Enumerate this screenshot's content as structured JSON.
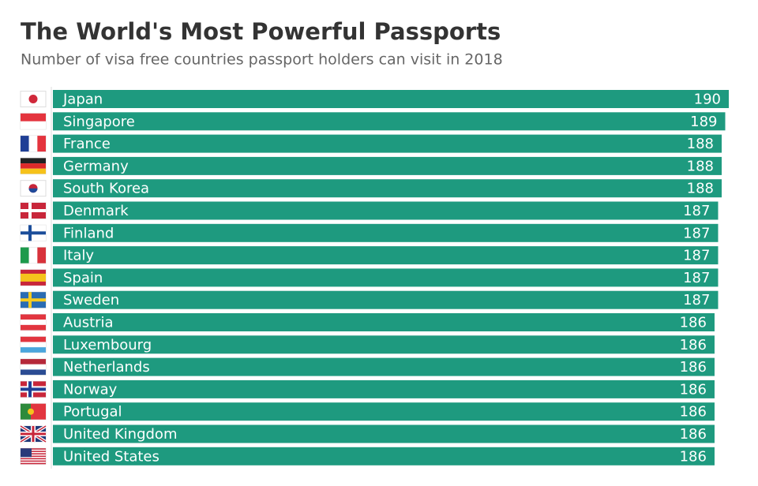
{
  "chart_data": {
    "type": "bar",
    "orientation": "horizontal",
    "title": "The World's Most Powerful Passports",
    "subtitle": "Number of visa free countries passport holders can visit in 2018",
    "categories": [
      "Japan",
      "Singapore",
      "France",
      "Germany",
      "South Korea",
      "Denmark",
      "Finland",
      "Italy",
      "Spain",
      "Sweden",
      "Austria",
      "Luxembourg",
      "Netherlands",
      "Norway",
      "Portugal",
      "United Kingdom",
      "United States"
    ],
    "values": [
      190,
      189,
      188,
      188,
      188,
      187,
      187,
      187,
      187,
      187,
      186,
      186,
      186,
      186,
      186,
      186,
      186
    ],
    "color": "#1e9a7f",
    "xlim": [
      0,
      190
    ]
  }
}
